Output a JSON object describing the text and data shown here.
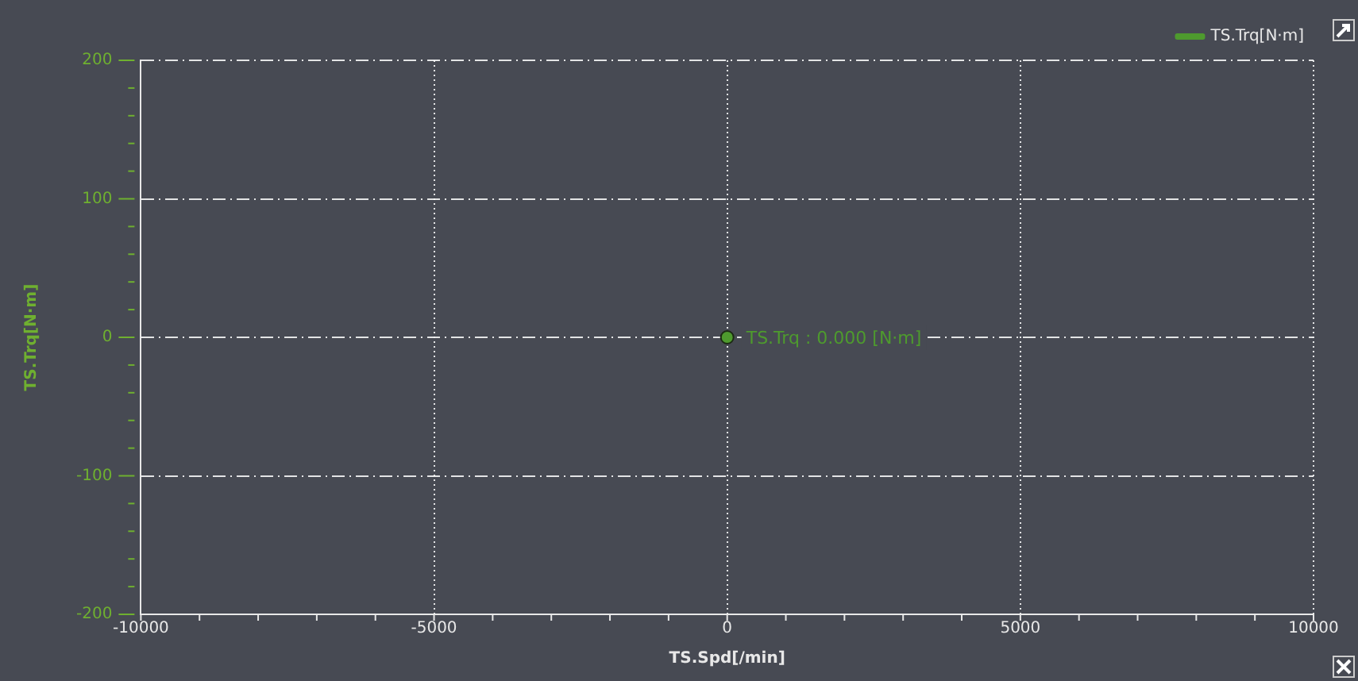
{
  "chart_data": {
    "type": "line",
    "xlabel": "TS.Spd[/min]",
    "ylabel": "TS.Trq[N·m]",
    "xlim": [
      -10000,
      10000
    ],
    "ylim": [
      -200,
      200
    ],
    "xticks": [
      -10000,
      {
        "value": -9000,
        "label": null
      },
      {
        "value": -8000,
        "label": null
      },
      {
        "value": -7000,
        "label": null
      },
      {
        "value": -6000,
        "label": null
      },
      -5000,
      {
        "value": -4000,
        "label": null
      },
      {
        "value": -3000,
        "label": null
      },
      {
        "value": -2000,
        "label": null
      },
      {
        "value": -1000,
        "label": null
      },
      0,
      {
        "value": 1000,
        "label": null
      },
      {
        "value": 2000,
        "label": null
      },
      {
        "value": 3000,
        "label": null
      },
      {
        "value": 4000,
        "label": null
      },
      5000,
      {
        "value": 6000,
        "label": null
      },
      {
        "value": 7000,
        "label": null
      },
      {
        "value": 8000,
        "label": null
      },
      {
        "value": 9000,
        "label": null
      },
      10000
    ],
    "yticks": [
      -200,
      {
        "value": -180,
        "label": null
      },
      {
        "value": -160,
        "label": null
      },
      {
        "value": -140,
        "label": null
      },
      {
        "value": -120,
        "label": null
      },
      -100,
      {
        "value": -80,
        "label": null
      },
      {
        "value": -60,
        "label": null
      },
      {
        "value": -40,
        "label": null
      },
      {
        "value": -20,
        "label": null
      },
      0,
      {
        "value": 20,
        "label": null
      },
      {
        "value": 40,
        "label": null
      },
      {
        "value": 60,
        "label": null
      },
      {
        "value": 80,
        "label": null
      },
      100,
      {
        "value": 120,
        "label": null
      },
      {
        "value": 140,
        "label": null
      },
      {
        "value": 160,
        "label": null
      },
      {
        "value": 180,
        "label": null
      },
      200
    ],
    "grid": true,
    "legend": "top right",
    "marker": "circle",
    "series": [
      {
        "name": "TS.Trq[N·m]",
        "color": "#4e9a2e",
        "x": [
          0
        ],
        "values": [
          0
        ]
      }
    ],
    "annotations": [
      {
        "text": "TS.Trq : 0.000 [N·m]",
        "x": 0,
        "y": 0
      }
    ]
  }
}
